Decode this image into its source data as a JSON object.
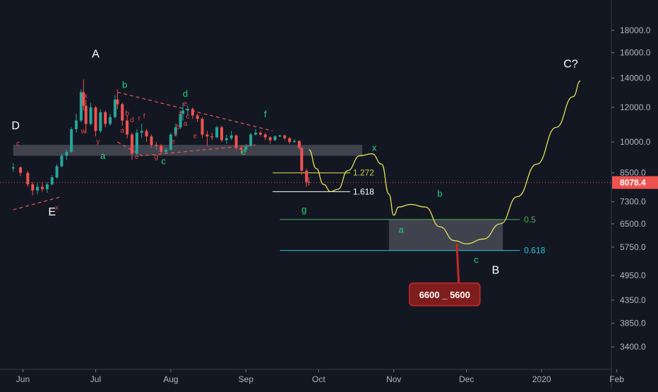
{
  "chart_data": {
    "type": "candlestick",
    "x_ticks": [
      "Jun",
      "Jul",
      "Aug",
      "Sep",
      "Oct",
      "Nov",
      "Dec",
      "2020",
      "Feb"
    ],
    "y_ticks": [
      18000.0,
      16000.0,
      14000.0,
      12000.0,
      10000.0,
      8500.0,
      7300.0,
      6500.0,
      5750.0,
      4950.0,
      4350.0,
      3850.0,
      3400.0
    ],
    "y_tick_labels": [
      "18000.0",
      "16000.0",
      "14000.0",
      "12000.0",
      "10000.0",
      "8500.0",
      "7300.0",
      "6500.0",
      "5750.0",
      "4950.0",
      "4350.0",
      "3850.0",
      "3400.0"
    ],
    "y_scale": "log",
    "y_range": [
      3100,
      20500
    ],
    "current_price": 8078.4,
    "current_price_label": "8078.4",
    "grid": false,
    "colors": {
      "up": "#26a69a",
      "down": "#ef5350",
      "path": "#e5e05a",
      "price_line": "#ef5350",
      "price_badge": "#ef5350",
      "fib_05": "#4caf50",
      "fib_0618": "#26c6da",
      "box": "#787b86"
    },
    "candles": [
      {
        "d": "2019-05-28",
        "o": 8700,
        "h": 8950,
        "l": 8550,
        "c": 8750
      },
      {
        "d": "2019-05-31",
        "o": 8750,
        "h": 8800,
        "l": 8350,
        "c": 8500
      },
      {
        "d": "2019-06-03",
        "o": 8500,
        "h": 8600,
        "l": 7900,
        "c": 8000
      },
      {
        "d": "2019-06-05",
        "o": 8000,
        "h": 8100,
        "l": 7550,
        "c": 7750
      },
      {
        "d": "2019-06-07",
        "o": 7750,
        "h": 8050,
        "l": 7600,
        "c": 7900
      },
      {
        "d": "2019-06-09",
        "o": 7900,
        "h": 8100,
        "l": 7700,
        "c": 7800
      },
      {
        "d": "2019-06-11",
        "o": 7800,
        "h": 8100,
        "l": 7650,
        "c": 8000
      },
      {
        "d": "2019-06-13",
        "o": 8000,
        "h": 8400,
        "l": 7950,
        "c": 8300
      },
      {
        "d": "2019-06-15",
        "o": 8300,
        "h": 8900,
        "l": 8250,
        "c": 8800
      },
      {
        "d": "2019-06-17",
        "o": 8800,
        "h": 9400,
        "l": 8750,
        "c": 9300
      },
      {
        "d": "2019-06-19",
        "o": 9300,
        "h": 9600,
        "l": 9100,
        "c": 9500
      },
      {
        "d": "2019-06-21",
        "o": 9500,
        "h": 10800,
        "l": 9450,
        "c": 10700
      },
      {
        "d": "2019-06-23",
        "o": 10700,
        "h": 11600,
        "l": 10500,
        "c": 11200
      },
      {
        "d": "2019-06-25",
        "o": 11200,
        "h": 13200,
        "l": 11100,
        "c": 13000
      },
      {
        "d": "2019-06-26",
        "o": 13000,
        "h": 13900,
        "l": 11800,
        "c": 12100
      },
      {
        "d": "2019-06-27",
        "o": 12100,
        "h": 12500,
        "l": 10500,
        "c": 11000
      },
      {
        "d": "2019-06-29",
        "o": 11000,
        "h": 12300,
        "l": 10900,
        "c": 12000
      },
      {
        "d": "2019-07-01",
        "o": 12000,
        "h": 12100,
        "l": 10300,
        "c": 10600
      },
      {
        "d": "2019-07-03",
        "o": 10600,
        "h": 11900,
        "l": 10500,
        "c": 11700
      },
      {
        "d": "2019-07-05",
        "o": 11700,
        "h": 11800,
        "l": 10800,
        "c": 11000
      },
      {
        "d": "2019-07-07",
        "o": 11000,
        "h": 11600,
        "l": 10900,
        "c": 11400
      },
      {
        "d": "2019-07-09",
        "o": 11400,
        "h": 12800,
        "l": 11300,
        "c": 12500
      },
      {
        "d": "2019-07-10",
        "o": 12500,
        "h": 13200,
        "l": 11900,
        "c": 12200
      },
      {
        "d": "2019-07-12",
        "o": 12200,
        "h": 12300,
        "l": 10900,
        "c": 11200
      },
      {
        "d": "2019-07-14",
        "o": 11200,
        "h": 11500,
        "l": 10200,
        "c": 10400
      },
      {
        "d": "2019-07-16",
        "o": 10400,
        "h": 10500,
        "l": 9100,
        "c": 9400
      },
      {
        "d": "2019-07-18",
        "o": 9400,
        "h": 10700,
        "l": 9300,
        "c": 10500
      },
      {
        "d": "2019-07-20",
        "o": 10500,
        "h": 11000,
        "l": 10200,
        "c": 10600
      },
      {
        "d": "2019-07-22",
        "o": 10600,
        "h": 10700,
        "l": 10000,
        "c": 10300
      },
      {
        "d": "2019-07-24",
        "o": 10300,
        "h": 10400,
        "l": 9700,
        "c": 9850
      },
      {
        "d": "2019-07-26",
        "o": 9850,
        "h": 10000,
        "l": 9600,
        "c": 9800
      },
      {
        "d": "2019-07-28",
        "o": 9800,
        "h": 9900,
        "l": 9400,
        "c": 9500
      },
      {
        "d": "2019-07-30",
        "o": 9500,
        "h": 9700,
        "l": 9400,
        "c": 9600
      },
      {
        "d": "2019-08-01",
        "o": 9600,
        "h": 10500,
        "l": 9550,
        "c": 10400
      },
      {
        "d": "2019-08-03",
        "o": 10400,
        "h": 11000,
        "l": 10300,
        "c": 10800
      },
      {
        "d": "2019-08-05",
        "o": 10800,
        "h": 11800,
        "l": 10700,
        "c": 11600
      },
      {
        "d": "2019-08-06",
        "o": 11600,
        "h": 12300,
        "l": 11200,
        "c": 11800
      },
      {
        "d": "2019-08-08",
        "o": 11800,
        "h": 12100,
        "l": 11500,
        "c": 11900
      },
      {
        "d": "2019-08-10",
        "o": 11900,
        "h": 12000,
        "l": 11300,
        "c": 11500
      },
      {
        "d": "2019-08-12",
        "o": 11500,
        "h": 11600,
        "l": 11100,
        "c": 11300
      },
      {
        "d": "2019-08-14",
        "o": 11300,
        "h": 11400,
        "l": 10200,
        "c": 10400
      },
      {
        "d": "2019-08-16",
        "o": 10400,
        "h": 10600,
        "l": 9800,
        "c": 10300
      },
      {
        "d": "2019-08-18",
        "o": 10300,
        "h": 10500,
        "l": 10100,
        "c": 10250
      },
      {
        "d": "2019-08-20",
        "o": 10250,
        "h": 10900,
        "l": 10200,
        "c": 10800
      },
      {
        "d": "2019-08-22",
        "o": 10800,
        "h": 10900,
        "l": 10000,
        "c": 10100
      },
      {
        "d": "2019-08-24",
        "o": 10100,
        "h": 10400,
        "l": 9900,
        "c": 10200
      },
      {
        "d": "2019-08-26",
        "o": 10200,
        "h": 10600,
        "l": 10100,
        "c": 10350
      },
      {
        "d": "2019-08-28",
        "o": 10350,
        "h": 10400,
        "l": 9600,
        "c": 9700
      },
      {
        "d": "2019-08-30",
        "o": 9700,
        "h": 9800,
        "l": 9400,
        "c": 9600
      },
      {
        "d": "2019-09-01",
        "o": 9600,
        "h": 9900,
        "l": 9500,
        "c": 9800
      },
      {
        "d": "2019-09-03",
        "o": 9800,
        "h": 10500,
        "l": 9750,
        "c": 10400
      },
      {
        "d": "2019-09-05",
        "o": 10400,
        "h": 10700,
        "l": 10350,
        "c": 10500
      },
      {
        "d": "2019-09-07",
        "o": 10500,
        "h": 10600,
        "l": 10300,
        "c": 10400
      },
      {
        "d": "2019-09-09",
        "o": 10400,
        "h": 10500,
        "l": 10100,
        "c": 10250
      },
      {
        "d": "2019-09-11",
        "o": 10250,
        "h": 10300,
        "l": 9900,
        "c": 10100
      },
      {
        "d": "2019-09-13",
        "o": 10100,
        "h": 10350,
        "l": 10050,
        "c": 10300
      },
      {
        "d": "2019-09-15",
        "o": 10300,
        "h": 10400,
        "l": 10250,
        "c": 10350
      },
      {
        "d": "2019-09-17",
        "o": 10350,
        "h": 10400,
        "l": 10100,
        "c": 10200
      },
      {
        "d": "2019-09-19",
        "o": 10200,
        "h": 10250,
        "l": 9900,
        "c": 10000
      },
      {
        "d": "2019-09-21",
        "o": 10000,
        "h": 10150,
        "l": 9950,
        "c": 10050
      },
      {
        "d": "2019-09-23",
        "o": 10050,
        "h": 10100,
        "l": 9600,
        "c": 9700
      },
      {
        "d": "2019-09-24",
        "o": 9700,
        "h": 9750,
        "l": 8400,
        "c": 8600
      },
      {
        "d": "2019-09-26",
        "o": 8600,
        "h": 8700,
        "l": 7900,
        "c": 8100
      },
      {
        "d": "2019-09-27",
        "o": 8100,
        "h": 8300,
        "l": 7950,
        "c": 8080
      }
    ],
    "projection": [
      [
        "2019-09-27",
        9600
      ],
      [
        "2019-09-30",
        8700
      ],
      [
        "2019-10-03",
        8000
      ],
      [
        "2019-10-06",
        7700
      ],
      [
        "2019-10-09",
        7800
      ],
      [
        "2019-10-13",
        8600
      ],
      [
        "2019-10-18",
        9300
      ],
      [
        "2019-10-23",
        9400
      ],
      [
        "2019-10-27",
        8900
      ],
      [
        "2019-10-30",
        7600
      ],
      [
        "2019-11-01",
        6800
      ],
      [
        "2019-11-03",
        7100
      ],
      [
        "2019-11-08",
        7200
      ],
      [
        "2019-11-14",
        7100
      ],
      [
        "2019-11-20",
        6400
      ],
      [
        "2019-11-26",
        5950
      ],
      [
        "2019-12-01",
        5850
      ],
      [
        "2019-12-08",
        6000
      ],
      [
        "2019-12-15",
        6500
      ],
      [
        "2019-12-22",
        7500
      ],
      [
        "2019-12-30",
        8900
      ],
      [
        "2020-01-07",
        10800
      ],
      [
        "2020-01-14",
        12700
      ],
      [
        "2020-01-17",
        13800
      ]
    ],
    "support_zone": {
      "from": "2019-05-28",
      "to": "2019-10-19",
      "low": 9300,
      "high": 9850
    },
    "target_zone": {
      "from": "2019-10-30",
      "to": "2019-12-16",
      "low": 5650,
      "high": 6650
    },
    "fib_levels": [
      {
        "label": "1.272",
        "value": 8500,
        "from": "2019-09-12",
        "to": "2019-10-14"
      },
      {
        "label": "1.618",
        "value": 7700,
        "from": "2019-09-12",
        "to": "2019-10-14"
      },
      {
        "label": "0.5",
        "value": 6650,
        "from": "2019-09-15",
        "to": "2019-12-23"
      },
      {
        "label": "0.618",
        "value": 5650,
        "from": "2019-09-15",
        "to": "2019-12-23"
      }
    ],
    "trend_lines": [
      {
        "points": [
          [
            "2019-07-10",
            13000
          ],
          [
            "2019-09-12",
            10600
          ]
        ]
      },
      {
        "points": [
          [
            "2019-07-10",
            10000
          ],
          [
            "2019-07-20",
            9300
          ],
          [
            "2019-09-05",
            9850
          ]
        ]
      },
      {
        "points": [
          [
            "2019-05-28",
            7000
          ],
          [
            "2019-06-17",
            7500
          ]
        ]
      }
    ],
    "wave_labels_major": [
      {
        "text": "A",
        "d": "2019-07-01",
        "v": 15600
      },
      {
        "text": "D",
        "d": "2019-05-29",
        "v": 10700
      },
      {
        "text": "E",
        "d": "2019-06-13",
        "v": 6800
      },
      {
        "text": "C?",
        "d": "2020-01-13",
        "v": 14800
      },
      {
        "text": "B",
        "d": "2019-12-13",
        "v": 5000
      }
    ],
    "wave_labels_minor": [
      {
        "text": "a",
        "d": "2019-07-04",
        "v": 9150
      },
      {
        "text": "b",
        "d": "2019-07-13",
        "v": 13300
      },
      {
        "text": "c",
        "d": "2019-07-29",
        "v": 8900
      },
      {
        "text": "d",
        "d": "2019-08-07",
        "v": 12700
      },
      {
        "text": "e",
        "d": "2019-08-31",
        "v": 9350
      },
      {
        "text": "f",
        "d": "2019-09-09",
        "v": 11400
      },
      {
        "text": "x",
        "d": "2019-10-24",
        "v": 9550
      },
      {
        "text": "g",
        "d": "2019-09-25",
        "v": 6900
      },
      {
        "text": "a",
        "d": "2019-11-04",
        "v": 6200
      },
      {
        "text": "b",
        "d": "2019-11-20",
        "v": 7500
      },
      {
        "text": "c",
        "d": "2019-12-05",
        "v": 5300
      }
    ],
    "wave_labels_small": [
      {
        "text": "c",
        "d": "2019-05-30",
        "v": 9800
      },
      {
        "text": "x",
        "d": "2019-06-15",
        "v": 7000
      },
      {
        "text": "x",
        "d": "2019-06-27",
        "v": 12600
      },
      {
        "text": "w",
        "d": "2019-06-26",
        "v": 10450
      },
      {
        "text": "y",
        "d": "2019-07-02",
        "v": 9900
      },
      {
        "text": "d",
        "d": "2019-07-16",
        "v": 11100
      },
      {
        "text": "a",
        "d": "2019-07-12",
        "v": 10500
      },
      {
        "text": "b",
        "d": "2019-07-14",
        "v": 11500
      },
      {
        "text": "r",
        "d": "2019-07-19",
        "v": 11200
      },
      {
        "text": "f",
        "d": "2019-07-21",
        "v": 11300
      },
      {
        "text": "c",
        "d": "2019-07-16",
        "v": 9900
      },
      {
        "text": "e",
        "d": "2019-07-18",
        "v": 9150
      },
      {
        "text": "g",
        "d": "2019-07-26",
        "v": 9150
      },
      {
        "text": "x",
        "d": "2019-08-03",
        "v": 10300
      },
      {
        "text": "b",
        "d": "2019-08-04",
        "v": 10700
      },
      {
        "text": "e",
        "d": "2019-08-02",
        "v": 9900
      },
      {
        "text": "x",
        "d": "2019-08-05",
        "v": 11500
      },
      {
        "text": "a",
        "d": "2019-08-07",
        "v": 10900
      },
      {
        "text": "c",
        "d": "2019-08-08",
        "v": 11300
      },
      {
        "text": "e",
        "d": "2019-08-07",
        "v": 12100
      },
      {
        "text": "e",
        "d": "2019-08-11",
        "v": 10200
      }
    ],
    "callout": {
      "text": "6600 _ 5600",
      "d": "2019-11-22",
      "v": 4500,
      "target_d": "2019-11-27",
      "target_v": 5850
    }
  }
}
